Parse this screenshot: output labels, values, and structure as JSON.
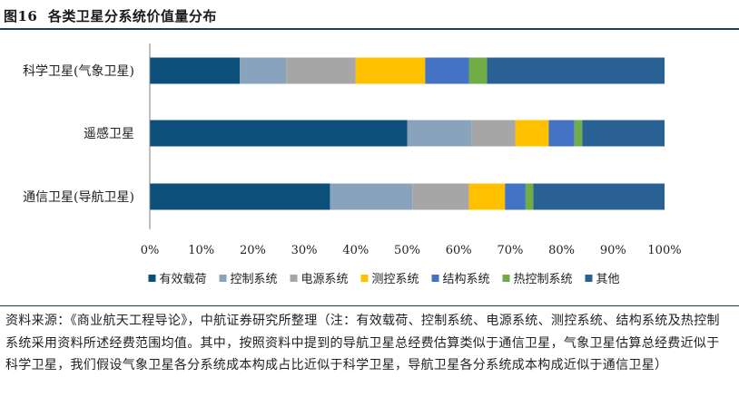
{
  "figure": {
    "label": "图16",
    "title": "各类卫星分系统价值量分布"
  },
  "chart_data": {
    "type": "bar",
    "orientation": "horizontal",
    "stacked": "percent",
    "categories": [
      "科学卫星(气象卫星)",
      "遥感卫星",
      "通信卫星(导航卫星)"
    ],
    "series": [
      {
        "name": "有效载荷",
        "color": "#0b4f7a",
        "values": [
          17.5,
          50,
          35
        ]
      },
      {
        "name": "控制系统",
        "color": "#8aa3bd",
        "values": [
          9,
          12.5,
          16
        ]
      },
      {
        "name": "电源系统",
        "color": "#a6a6a6",
        "values": [
          13.5,
          8.5,
          11
        ]
      },
      {
        "name": "测控系统",
        "color": "#ffc000",
        "values": [
          13.5,
          6.5,
          7
        ]
      },
      {
        "name": "结构系统",
        "color": "#4472c4",
        "values": [
          8.5,
          5,
          4
        ]
      },
      {
        "name": "热控制系统",
        "color": "#70ad47",
        "values": [
          3.5,
          1.5,
          1.5
        ]
      },
      {
        "name": "其他",
        "color": "#2a6194",
        "values": [
          34.5,
          16,
          25.5
        ]
      }
    ],
    "xlim": [
      0,
      100
    ],
    "xticks": [
      "0%",
      "10%",
      "20%",
      "30%",
      "40%",
      "50%",
      "60%",
      "70%",
      "80%",
      "90%",
      "100%"
    ],
    "legend_position": "bottom",
    "grid": false
  },
  "source": {
    "text": "资料来源：《商业航天工程导论》，中航证券研究所整理（注：有效载荷、控制系统、电源系统、测控系统、结构系统及热控制系统采用资料所述经费范围均值。其中，按照资料中提到的导航卫星总经费估算类似于通信卫星，气象卫星估算总经费近似于科学卫星，我们假设气象卫星各分系统成本构成占比近似于科学卫星，导航卫星各分系统成本构成近似于通信卫星）"
  }
}
